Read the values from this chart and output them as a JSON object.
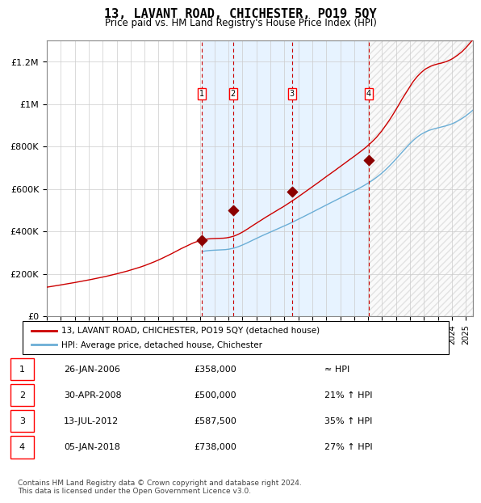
{
  "title": "13, LAVANT ROAD, CHICHESTER, PO19 5QY",
  "subtitle": "Price paid vs. HM Land Registry's House Price Index (HPI)",
  "transactions": [
    {
      "num": 1,
      "date": "26-JAN-2006",
      "year": 2006.07,
      "price": 358000,
      "label": "≈ HPI"
    },
    {
      "num": 2,
      "date": "30-APR-2008",
      "year": 2008.33,
      "price": 500000,
      "label": "21% ↑ HPI"
    },
    {
      "num": 3,
      "date": "13-JUL-2012",
      "year": 2012.54,
      "price": 587500,
      "label": "35% ↑ HPI"
    },
    {
      "num": 4,
      "date": "05-JAN-2018",
      "year": 2018.02,
      "price": 738000,
      "label": "27% ↑ HPI"
    }
  ],
  "hpi_line_color": "#6baed6",
  "price_line_color": "#cc0000",
  "dot_color": "#8b0000",
  "vline_color": "#cc0000",
  "shade_color": "#ddeeff",
  "hatch_color": "#aaaaaa",
  "grid_color": "#cccccc",
  "background_color": "#ffffff",
  "ylabel": "",
  "ylim": [
    0,
    1300000
  ],
  "yticks": [
    0,
    200000,
    400000,
    600000,
    800000,
    1000000,
    1200000
  ],
  "ytick_labels": [
    "£0",
    "£200K",
    "£400K",
    "£600K",
    "£800K",
    "£1M",
    "£1.2M"
  ],
  "xlim_start": 1995,
  "xlim_end": 2025.5,
  "footer": "Contains HM Land Registry data © Crown copyright and database right 2024.\nThis data is licensed under the Open Government Licence v3.0.",
  "legend_line1": "13, LAVANT ROAD, CHICHESTER, PO19 5QY (detached house)",
  "legend_line2": "HPI: Average price, detached house, Chichester"
}
